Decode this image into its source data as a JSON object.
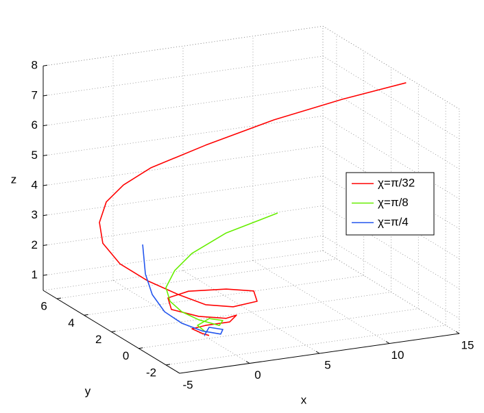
{
  "chart_data": {
    "type": "line3d",
    "xlabel": "x",
    "ylabel": "y",
    "zlabel": "z",
    "xlim": [
      -5,
      15
    ],
    "ylim": [
      -3,
      7
    ],
    "zlim": [
      0.5,
      8
    ],
    "xticks": [
      -5,
      0,
      5,
      10,
      15
    ],
    "yticks": [
      -2,
      0,
      2,
      4,
      6
    ],
    "zticks": [
      1,
      2,
      3,
      4,
      5,
      6,
      7,
      8
    ],
    "grid": true,
    "legend_position": "east",
    "series": [
      {
        "name": "χ=π/32",
        "color": "#ff0000",
        "x": [
          15,
          10.76,
          6.25,
          1.74,
          -1.89,
          -3.65,
          -4.78,
          -4.88,
          -4.64,
          -3.61,
          -2.03,
          -0.22,
          1.25,
          2.73,
          4.93,
          6.15,
          5.16,
          2.66,
          0.8,
          0.07,
          1.05,
          2.43,
          3.55,
          2.48,
          0.76,
          -0.41,
          -0.06,
          0.23
        ],
        "y": [
          0.9,
          1.2,
          1.6,
          2,
          2.3,
          2.5,
          2.6,
          3,
          3,
          2.8,
          2.4,
          2,
          1.5,
          1,
          1.5,
          3,
          4,
          4.2,
          3.8,
          2.8,
          1.8,
          1.2,
          1.6,
          1,
          1,
          0.8,
          0.4,
          0.2
        ],
        "z": [
          7.8,
          7.45,
          6.95,
          6.29,
          5.69,
          5.18,
          4.66,
          3.87,
          3.16,
          2.46,
          1.9,
          1.43,
          1.13,
          1.1,
          1.0,
          0.85,
          0.7,
          0.74,
          0.75,
          0.69,
          0.67,
          0.68,
          0.6,
          0.61,
          0.61,
          0.63,
          0.56,
          0.53
        ]
      },
      {
        "name": "χ=π/8",
        "color": "#66ee00",
        "x": [
          6.89,
          3.21,
          0.76,
          -0.47,
          -1.1,
          -1,
          -0.46,
          0.47,
          1.55,
          2.28,
          1.5,
          0.18,
          0.18
        ],
        "y": [
          2,
          2,
          2,
          2,
          2,
          1.8,
          1.5,
          1.2,
          0.8,
          1.3,
          1.5,
          1,
          0.4
        ],
        "z": [
          3.68,
          3.26,
          2.74,
          2.25,
          1.72,
          1.31,
          1.01,
          0.76,
          0.61,
          0.59,
          0.65,
          0.65,
          0.59
        ]
      },
      {
        "name": "χ=π/4",
        "color": "#2255ee",
        "x": [
          -1.79,
          -1.79,
          -1.59,
          -1.2,
          -0.56,
          0.32,
          1.06,
          1.6,
          1.01,
          -0.11
        ],
        "y": [
          3,
          2.8,
          2.5,
          2,
          1.4,
          0.8,
          0.2,
          0.6,
          1,
          0.2
        ],
        "z": [
          2.93,
          2.0,
          1.38,
          0.92,
          0.66,
          0.51,
          0.52,
          0.53,
          0.53,
          0.55
        ]
      }
    ]
  }
}
